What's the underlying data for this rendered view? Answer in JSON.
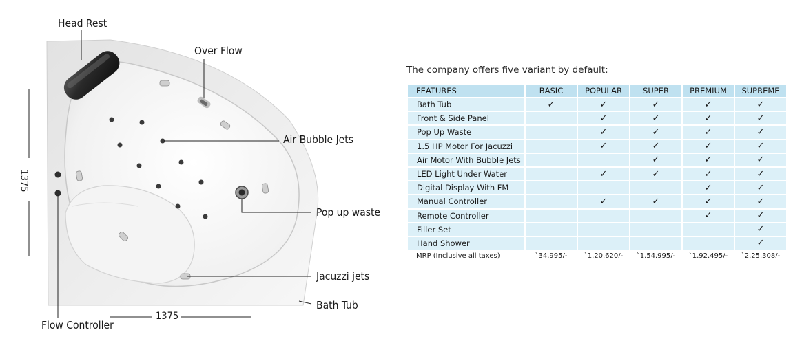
{
  "diagram": {
    "labels": {
      "head_rest": "Head Rest",
      "over_flow": "Over Flow",
      "air_bubble_jets": "Air Bubble Jets",
      "pop_up_waste": "Pop up waste",
      "jacuzzi_jets": "Jacuzzi jets",
      "bath_tub": "Bath Tub",
      "flow_controller": "Flow Controller"
    },
    "dimension_width": "1375",
    "dimension_height": "1375"
  },
  "intro": "The company offers five variant by default:",
  "table": {
    "headers": [
      "FEATURES",
      "BASIC",
      "POPULAR",
      "SUPER",
      "PREMIUM",
      "SUPREME"
    ],
    "check_symbol": "✓",
    "rows": [
      {
        "feature": "Bath Tub",
        "marks": [
          true,
          true,
          true,
          true,
          true
        ]
      },
      {
        "feature": "Front & Side Panel",
        "marks": [
          false,
          true,
          true,
          true,
          true
        ]
      },
      {
        "feature": "Pop Up Waste",
        "marks": [
          false,
          true,
          true,
          true,
          true
        ]
      },
      {
        "feature": "1.5 HP Motor For Jacuzzi",
        "marks": [
          false,
          true,
          true,
          true,
          true
        ]
      },
      {
        "feature": "Air Motor With Bubble Jets",
        "marks": [
          false,
          false,
          true,
          true,
          true
        ]
      },
      {
        "feature": "LED Light Under Water",
        "marks": [
          false,
          true,
          true,
          true,
          true
        ]
      },
      {
        "feature": "Digital Display With FM",
        "marks": [
          false,
          false,
          false,
          true,
          true
        ]
      },
      {
        "feature": "Manual Controller",
        "marks": [
          false,
          true,
          true,
          true,
          true
        ]
      },
      {
        "feature": "Remote Controller",
        "marks": [
          false,
          false,
          false,
          true,
          true
        ]
      },
      {
        "feature": "Filler Set",
        "marks": [
          false,
          false,
          false,
          false,
          true
        ]
      },
      {
        "feature": "Hand Shower",
        "marks": [
          false,
          false,
          false,
          false,
          true
        ]
      }
    ],
    "mrp_label": "MRP (Inclusive all taxes)",
    "mrp_values": [
      "`34.995/-",
      "`1.20.620/-",
      "`1.54.995/-",
      "`1.92.495/-",
      "`2.25.308/-"
    ]
  }
}
